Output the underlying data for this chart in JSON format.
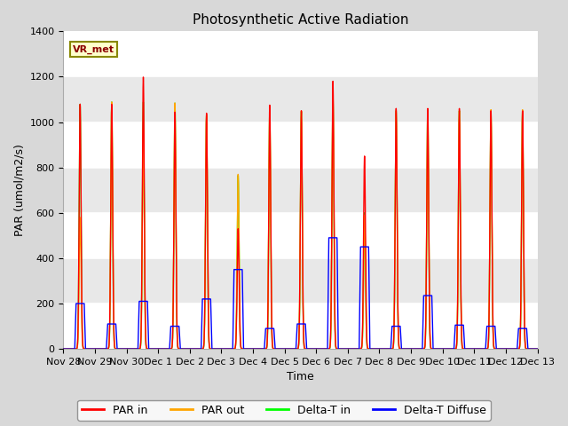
{
  "title": "Photosynthetic Active Radiation",
  "ylabel": "PAR (umol/m2/s)",
  "xlabel": "Time",
  "legend_label": "VR_met",
  "series_labels": [
    "PAR in",
    "PAR out",
    "Delta-T in",
    "Delta-T Diffuse"
  ],
  "series_colors": [
    "red",
    "orange",
    "lime",
    "blue"
  ],
  "ylim": [
    0,
    1400
  ],
  "figsize": [
    6.4,
    4.8
  ],
  "dpi": 100,
  "tick_labels": [
    "Nov 28",
    "Nov 29",
    "Nov 30",
    "Dec 1",
    "Dec 2",
    "Dec 3",
    "Dec 4",
    "Dec 5",
    "Dec 6",
    "Dec 7",
    "Dec 8",
    "Dec 9",
    "Dec 10",
    "Dec 11",
    "Dec 12",
    "Dec 13"
  ],
  "n_days": 15,
  "pts_per_day": 288,
  "day_peaks_par_in": [
    1080,
    1080,
    1200,
    1045,
    1040,
    530,
    1075,
    1050,
    1180,
    850,
    1060,
    1060,
    1060,
    1050,
    1050
  ],
  "day_peaks_par_out": [
    580,
    1090,
    970,
    1085,
    1030,
    770,
    1050,
    1050,
    1130,
    590,
    1050,
    1050,
    1050,
    1055,
    1055
  ],
  "day_peaks_delta_in": [
    1080,
    1090,
    1090,
    1085,
    1030,
    765,
    1050,
    1045,
    1120,
    600,
    1050,
    1050,
    1050,
    1050,
    1050
  ],
  "day_peaks_delta_dif": [
    200,
    110,
    210,
    100,
    220,
    350,
    90,
    110,
    490,
    450,
    100,
    235,
    105,
    100,
    90
  ],
  "hspan_bands": [
    [
      0,
      200,
      "#ffffff"
    ],
    [
      200,
      400,
      "#e8e8e8"
    ],
    [
      400,
      600,
      "#ffffff"
    ],
    [
      600,
      800,
      "#e8e8e8"
    ],
    [
      800,
      1000,
      "#ffffff"
    ],
    [
      1000,
      1200,
      "#e8e8e8"
    ],
    [
      1200,
      1400,
      "#ffffff"
    ]
  ]
}
